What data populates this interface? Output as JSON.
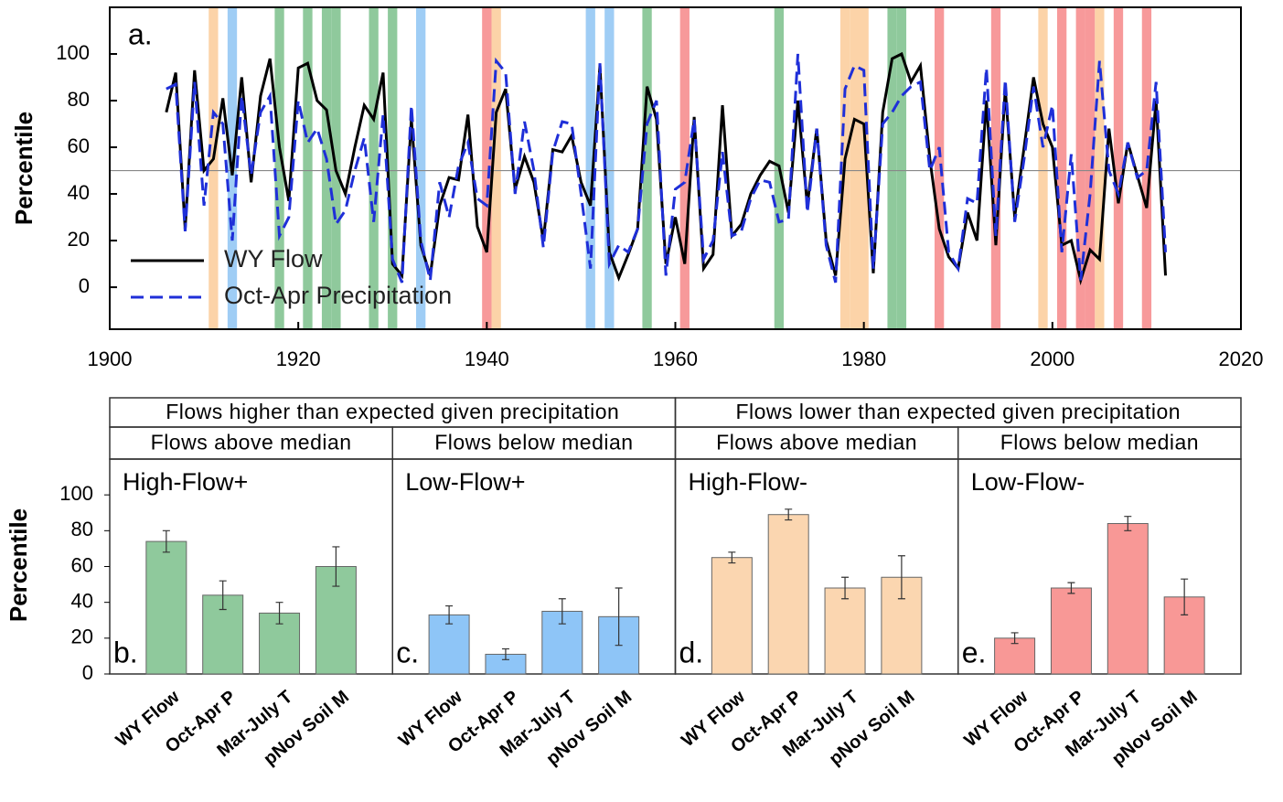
{
  "chart_data": [
    {
      "type": "line",
      "panel_label": "a.",
      "ylabel": "Percentile",
      "x": [
        1906,
        1907,
        1908,
        1909,
        1910,
        1911,
        1912,
        1913,
        1914,
        1915,
        1916,
        1917,
        1918,
        1919,
        1920,
        1921,
        1922,
        1923,
        1924,
        1925,
        1926,
        1927,
        1928,
        1929,
        1930,
        1931,
        1932,
        1933,
        1934,
        1935,
        1936,
        1937,
        1938,
        1939,
        1940,
        1941,
        1942,
        1943,
        1944,
        1945,
        1946,
        1947,
        1948,
        1949,
        1950,
        1951,
        1952,
        1953,
        1954,
        1955,
        1956,
        1957,
        1958,
        1959,
        1960,
        1961,
        1962,
        1963,
        1964,
        1965,
        1966,
        1967,
        1968,
        1969,
        1970,
        1971,
        1972,
        1973,
        1974,
        1975,
        1976,
        1977,
        1978,
        1979,
        1980,
        1981,
        1982,
        1983,
        1984,
        1985,
        1986,
        1987,
        1988,
        1989,
        1990,
        1991,
        1992,
        1993,
        1994,
        1995,
        1996,
        1997,
        1998,
        1999,
        2000,
        2001,
        2002,
        2003,
        2004,
        2005,
        2006,
        2007,
        2008,
        2009,
        2010,
        2011,
        2012
      ],
      "series": [
        {
          "name": "WY Flow",
          "color": "#000000",
          "dash": false,
          "values": [
            75,
            92,
            25,
            93,
            50,
            55,
            81,
            48,
            90,
            45,
            82,
            98,
            60,
            37,
            94,
            96,
            80,
            76,
            50,
            40,
            60,
            78,
            72,
            92,
            10,
            5,
            72,
            18,
            5,
            35,
            47,
            46,
            74,
            26,
            15,
            75,
            85,
            42,
            56,
            45,
            20,
            59,
            58,
            65,
            45,
            35,
            95,
            15,
            4,
            14,
            25,
            86,
            72,
            10,
            30,
            10,
            73,
            8,
            14,
            78,
            22,
            27,
            40,
            48,
            54,
            52,
            32,
            80,
            35,
            68,
            20,
            5,
            55,
            72,
            70,
            6,
            75,
            98,
            100,
            88,
            95,
            55,
            25,
            13,
            8,
            32,
            20,
            80,
            18,
            85,
            30,
            60,
            90,
            70,
            60,
            18,
            20,
            3,
            16,
            12,
            68,
            36,
            62,
            48,
            34,
            80,
            5
          ]
        },
        {
          "name": "Oct-Apr Precipitation",
          "color": "#1f2fd8",
          "dash": true,
          "values": [
            85,
            87,
            24,
            88,
            35,
            75,
            70,
            20,
            82,
            48,
            75,
            82,
            22,
            30,
            80,
            62,
            68,
            55,
            27,
            33,
            50,
            64,
            28,
            74,
            12,
            2,
            78,
            20,
            3,
            45,
            30,
            52,
            62,
            38,
            35,
            97,
            92,
            40,
            71,
            50,
            17,
            58,
            71,
            70,
            40,
            8,
            96,
            10,
            18,
            15,
            25,
            70,
            80,
            5,
            42,
            45,
            72,
            12,
            20,
            58,
            22,
            24,
            38,
            46,
            45,
            28,
            29,
            100,
            32,
            68,
            18,
            2,
            85,
            95,
            93,
            8,
            70,
            75,
            82,
            86,
            88,
            50,
            60,
            15,
            8,
            38,
            36,
            94,
            22,
            89,
            28,
            55,
            86,
            60,
            78,
            15,
            57,
            3,
            40,
            97,
            50,
            40,
            62,
            47,
            50,
            88,
            15
          ]
        }
      ],
      "bands": [
        {
          "color": "#8fc99c",
          "years": [
            1918,
            1921,
            1923,
            1924,
            1928,
            1930,
            1957,
            1971,
            1983,
            1984
          ]
        },
        {
          "color": "#9fcdf5",
          "years": [
            1913,
            1933,
            1951,
            1953
          ]
        },
        {
          "color": "#fcd3a8",
          "years": [
            1911,
            1941,
            1978,
            1979,
            1980,
            1999,
            2005
          ]
        },
        {
          "color": "#f7999a",
          "years": [
            1940,
            1961,
            1988,
            1994,
            2001,
            2003,
            2004,
            2007,
            2010
          ]
        }
      ],
      "reference_line": 50,
      "xlim": [
        1900,
        2020
      ],
      "xticks": [
        1900,
        1920,
        1940,
        1960,
        1980,
        2000,
        2020
      ],
      "ylim": [
        -18,
        120
      ],
      "yticks": [
        0,
        20,
        40,
        60,
        80,
        100
      ],
      "legend": "lower left"
    },
    {
      "type": "bar",
      "title": "High-Flow+",
      "panel_label": "b.",
      "ylabel": "Percentile",
      "color": "#8fc99c",
      "categories": [
        "WY Flow",
        "Oct-Apr P",
        "Mar-July T",
        "pNov Soil M"
      ],
      "values": [
        74,
        44,
        34,
        60
      ],
      "errors": [
        6,
        8,
        6,
        11
      ],
      "ylim": [
        0,
        120
      ],
      "yticks": [
        0,
        20,
        40,
        60,
        80,
        100
      ]
    },
    {
      "type": "bar",
      "title": "Low-Flow+",
      "panel_label": "c.",
      "color": "#8ec5f7",
      "categories": [
        "WY Flow",
        "Oct-Apr P",
        "Mar-July T",
        "pNov Soil M"
      ],
      "values": [
        33,
        11,
        35,
        32
      ],
      "errors": [
        5,
        3,
        7,
        16
      ],
      "ylim": [
        0,
        120
      ]
    },
    {
      "type": "bar",
      "title": "High-Flow-",
      "panel_label": "d.",
      "color": "#fbd6b0",
      "categories": [
        "WY Flow",
        "Oct-Apr P",
        "Mar-July T",
        "pNov Soil M"
      ],
      "values": [
        65,
        89,
        48,
        54
      ],
      "errors": [
        3,
        3,
        6,
        12
      ],
      "ylim": [
        0,
        120
      ]
    },
    {
      "type": "bar",
      "title": "Low-Flow-",
      "panel_label": "e.",
      "color": "#f89896",
      "categories": [
        "WY Flow",
        "Oct-Apr P",
        "Mar-July T",
        "pNov Soil M"
      ],
      "values": [
        20,
        48,
        84,
        43
      ],
      "errors": [
        3,
        3,
        4,
        10
      ],
      "ylim": [
        0,
        120
      ]
    }
  ],
  "table": {
    "rows": [
      [
        "Flows higher than expected given precipitation",
        "Flows lower than expected given precipitation"
      ],
      [
        "Flows above median",
        "Flows below median",
        "Flows above median",
        "Flows below median"
      ]
    ]
  }
}
